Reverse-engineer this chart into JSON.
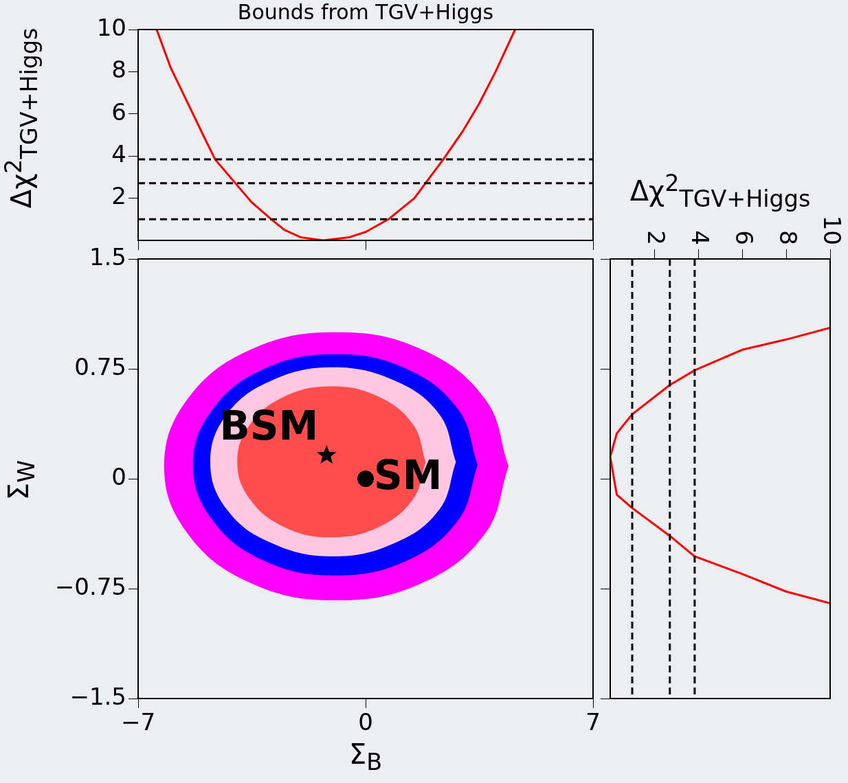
{
  "chart_data": [
    {
      "type": "line",
      "title": "Bounds from TGV+Higgs",
      "ylabel": "Δχ$^{2}$$_{TGV+Higgs}$",
      "xlim": [
        -7,
        7
      ],
      "xticks": [
        {
          "value": -7,
          "label": null
        },
        {
          "value": 0,
          "label": null
        },
        {
          "value": 7,
          "label": null
        }
      ],
      "ylim": [
        0,
        10
      ],
      "yticks": [
        2,
        4,
        6,
        8,
        10
      ],
      "tick_labels": "y",
      "legend": false,
      "grid": false,
      "series": [
        {
          "color": "#ff0000",
          "x": [
            -6.43,
            -6.0,
            -5.5,
            -5.0,
            -4.63,
            -4.0,
            -3.5,
            -2.9,
            -2.5,
            -2.0,
            -1.3,
            -0.5,
            0.0,
            0.7,
            1.5,
            2.39,
            3.0,
            3.5,
            4.0,
            4.6
          ],
          "values": [
            10,
            8.2,
            6.6,
            5.0,
            3.84,
            2.7,
            1.8,
            1.0,
            0.5,
            0.15,
            0,
            0.15,
            0.4,
            1.0,
            2.0,
            3.84,
            5.2,
            6.5,
            8.0,
            10
          ]
        }
      ],
      "ref_lines": [
        {
          "axis": "y",
          "value": 1,
          "color": "#000000",
          "line_style": "dashed"
        },
        {
          "axis": "y",
          "value": 2.71,
          "color": "#000000",
          "line_style": "dashed"
        },
        {
          "axis": "y",
          "value": 3.84,
          "color": "#000000",
          "line_style": "dashed"
        }
      ]
    },
    {
      "type": "area",
      "xlabel": "Σ$_{B}$",
      "ylabel": "Σ$_{W}$",
      "xlim": [
        -7,
        7
      ],
      "xticks": [
        {
          "value": -7,
          "label": "−7"
        },
        0,
        7
      ],
      "ylim": [
        -1.5,
        1.5
      ],
      "yticks": [
        {
          "value": -1.5,
          "label": "−1.5"
        },
        {
          "value": -0.75,
          "label": "−0.75"
        },
        0,
        0.75,
        1.5
      ],
      "legend": false,
      "grid": false,
      "series": [
        {
          "color": "#ff00ff",
          "x": [
            4.4,
            3.69,
            1.75,
            -0.9,
            -3.55,
            -5.49,
            -6.2,
            -5.49,
            -3.55,
            -0.9,
            1.75,
            3.69
          ],
          "values": [
            0.085,
            0.54,
            0.88,
            1.0,
            0.88,
            0.54,
            0.085,
            -0.37,
            -0.71,
            -0.83,
            -0.71,
            -0.37
          ]
        },
        {
          "color": "#0000ff",
          "x": [
            3.45,
            2.86,
            1.26,
            -0.93,
            -3.12,
            -4.72,
            -5.31,
            -4.72,
            -3.12,
            -0.93,
            1.26,
            2.86
          ],
          "values": [
            0.095,
            0.47,
            0.75,
            0.85,
            0.75,
            0.47,
            0.095,
            -0.28,
            -0.56,
            -0.66,
            -0.56,
            -0.28
          ]
        },
        {
          "color": "#ffc8e0",
          "x": [
            2.78,
            2.27,
            0.89,
            -1.0,
            -2.89,
            -4.27,
            -4.78,
            -4.27,
            -2.89,
            -1.0,
            0.89,
            2.27
          ],
          "values": [
            0.115,
            0.44,
            0.67,
            0.76,
            0.67,
            0.44,
            0.115,
            -0.21,
            -0.44,
            -0.53,
            -0.44,
            -0.21
          ]
        },
        {
          "color": "#ff4d4d",
          "x": [
            1.85,
            1.46,
            0.4,
            -1.05,
            -2.5,
            -3.56,
            -3.95,
            -3.56,
            -2.5,
            -1.05,
            0.4,
            1.46
          ],
          "values": [
            0.115,
            0.37,
            0.56,
            0.63,
            0.56,
            0.37,
            0.115,
            -0.14,
            -0.33,
            -0.4,
            -0.33,
            -0.14
          ]
        },
        {
          "type": "scatter",
          "name": "BSM",
          "color": "#000000",
          "marker": "star",
          "x": [
            -1.2
          ],
          "values": [
            0.16
          ]
        },
        {
          "type": "scatter",
          "name": "SM",
          "color": "#000000",
          "marker": "circle",
          "x": [
            0
          ],
          "values": [
            0
          ]
        }
      ]
    },
    {
      "type": "line",
      "xlabel": "Δχ$^{2}$$_{TGV+Higgs}$",
      "xlim": [
        0,
        10
      ],
      "xticks": [
        2,
        4,
        6,
        8,
        10
      ],
      "ylim": [
        -1.5,
        1.5
      ],
      "yticks": [
        {
          "value": -1.5,
          "label": null
        },
        {
          "value": -0.75,
          "label": null
        },
        {
          "value": 0,
          "label": null
        },
        {
          "value": 0.75,
          "label": null
        },
        {
          "value": 1.5,
          "label": null
        }
      ],
      "tick_labels": "x",
      "legend": false,
      "grid": false,
      "series": [
        {
          "color": "#ff0000",
          "x": [
            10,
            8,
            6,
            3.84,
            2.71,
            1,
            0.3,
            0,
            0.3,
            1,
            2.71,
            3.84,
            6,
            8,
            10
          ],
          "values": [
            1.03,
            0.95,
            0.88,
            0.74,
            0.64,
            0.44,
            0.31,
            0.15,
            -0.11,
            -0.2,
            -0.39,
            -0.53,
            -0.65,
            -0.77,
            -0.85
          ]
        }
      ],
      "ref_lines": [
        {
          "axis": "x",
          "value": 1,
          "color": "#000000",
          "line_style": "dashed"
        },
        {
          "axis": "x",
          "value": 2.71,
          "color": "#000000",
          "line_style": "dashed"
        },
        {
          "axis": "x",
          "value": 3.84,
          "color": "#000000",
          "line_style": "dashed"
        }
      ]
    }
  ]
}
